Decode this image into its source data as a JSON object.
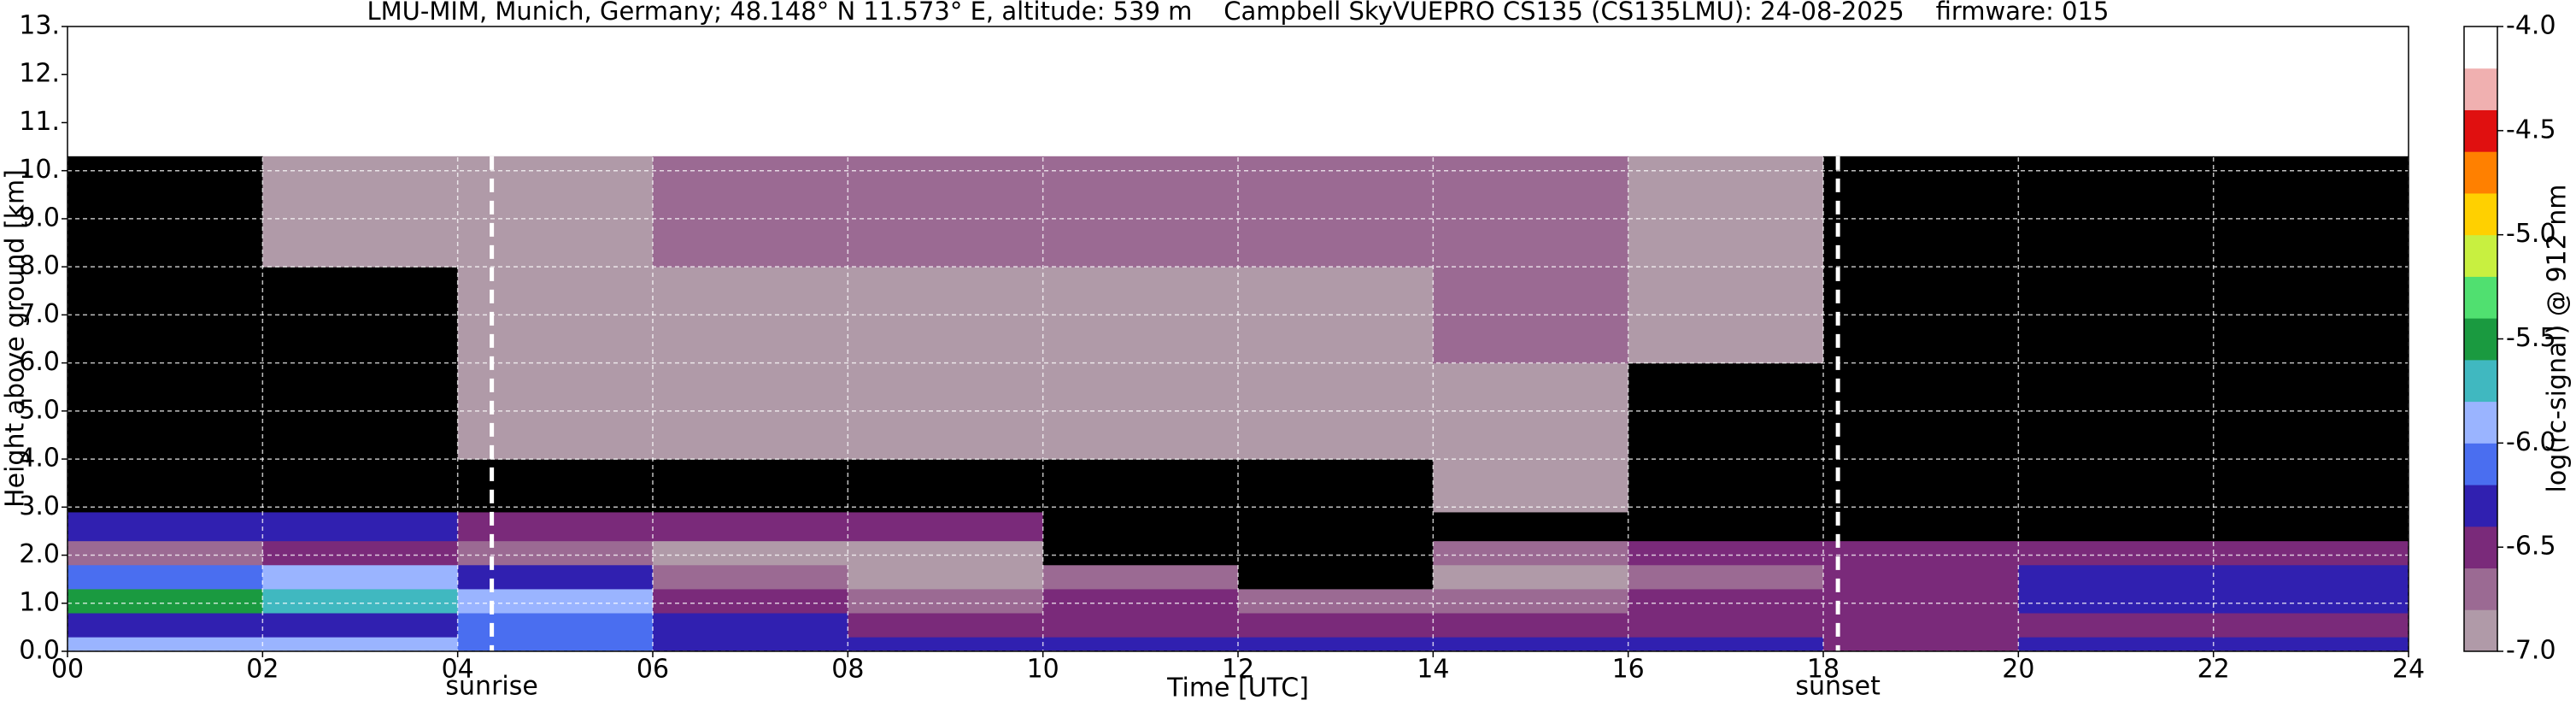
{
  "chart_data": {
    "type": "heatmap",
    "title": "LMU-MIM, Munich, Germany; 48.148° N 11.573° E, altitude: 539 m    Campbell SkyVUEPRO CS135 (CS135LMU): 24-08-2025    firmware: 015",
    "xlabel": "Time [UTC]",
    "ylabel": "Height above ground [km]",
    "colorbar_label": "log(rc-signal) @ 912 nm",
    "xlim": [
      0,
      24
    ],
    "ylim": [
      0,
      13
    ],
    "xticks": [
      {
        "value": 0,
        "label": "00"
      },
      {
        "value": 2,
        "label": "02"
      },
      {
        "value": 4,
        "label": "04"
      },
      {
        "value": 6,
        "label": "06"
      },
      {
        "value": 8,
        "label": "08"
      },
      {
        "value": 10,
        "label": "10"
      },
      {
        "value": 12,
        "label": "12"
      },
      {
        "value": 14,
        "label": "14"
      },
      {
        "value": 16,
        "label": "16"
      },
      {
        "value": 18,
        "label": "18"
      },
      {
        "value": 20,
        "label": "20"
      },
      {
        "value": 22,
        "label": "22"
      },
      {
        "value": 24,
        "label": "24"
      }
    ],
    "yticks": [
      {
        "value": 0,
        "label": "0.0"
      },
      {
        "value": 1,
        "label": "1.0"
      },
      {
        "value": 2,
        "label": "2.0"
      },
      {
        "value": 3,
        "label": "3.0"
      },
      {
        "value": 4,
        "label": "4.0"
      },
      {
        "value": 5,
        "label": "5.0"
      },
      {
        "value": 6,
        "label": "6.0"
      },
      {
        "value": 7,
        "label": "7.0"
      },
      {
        "value": 8,
        "label": "8.0"
      },
      {
        "value": 9,
        "label": "9.0"
      },
      {
        "value": 10,
        "label": "10."
      },
      {
        "value": 11,
        "label": "11."
      },
      {
        "value": 12,
        "label": "12."
      },
      {
        "value": 13,
        "label": "13."
      }
    ],
    "grid": true,
    "x_edges": [
      0,
      2,
      4,
      6,
      8,
      10,
      12,
      14,
      16,
      18,
      20,
      22,
      24
    ],
    "y_edges": [
      0,
      0.3,
      0.8,
      1.3,
      1.8,
      2.3,
      2.9,
      4,
      6,
      8,
      10.3
    ],
    "z": [
      [
        -6.0,
        -6.2,
        -5.6,
        -6.1,
        -6.7,
        -6.3,
        -7.4,
        -7.4,
        -7.3,
        -7.1
      ],
      [
        -6.0,
        -6.3,
        -5.7,
        -6.0,
        -6.6,
        -6.3,
        -7.4,
        -7.4,
        -7.3,
        -7.0
      ],
      [
        -6.1,
        -6.1,
        -6.0,
        -6.3,
        -6.7,
        -6.4,
        -7.1,
        -7.0,
        -6.9,
        -6.9
      ],
      [
        -6.2,
        -6.3,
        -6.6,
        -6.8,
        -7.0,
        -6.5,
        -7.1,
        -7.0,
        -6.9,
        -6.8
      ],
      [
        -6.2,
        -6.4,
        -6.7,
        -6.9,
        -7.0,
        -6.6,
        -7.1,
        -7.0,
        -6.9,
        -6.8
      ],
      [
        -6.2,
        -6.4,
        -6.5,
        -6.7,
        -7.1,
        -7.1,
        -7.1,
        -7.0,
        -6.9,
        -6.8
      ],
      [
        -6.2,
        -6.5,
        -6.8,
        -7.1,
        -7.1,
        -7.1,
        -7.1,
        -7.0,
        -6.9,
        -6.8
      ],
      [
        -6.2,
        -6.5,
        -6.7,
        -6.9,
        -6.8,
        -7.1,
        -7.0,
        -6.9,
        -6.8,
        -6.8
      ],
      [
        -6.2,
        -6.5,
        -6.6,
        -6.8,
        -6.5,
        -7.2,
        -7.2,
        -7.1,
        -7.0,
        -6.9
      ],
      [
        -6.4,
        -6.5,
        -6.5,
        -6.4,
        -6.5,
        -7.4,
        -7.4,
        -7.4,
        -7.3,
        -7.2
      ],
      [
        -6.3,
        -6.4,
        -6.3,
        -6.2,
        -6.6,
        -7.4,
        -7.4,
        -7.4,
        -7.3,
        -7.2
      ],
      [
        -6.3,
        -6.4,
        -6.3,
        -6.2,
        -6.6,
        -7.4,
        -7.4,
        -7.4,
        -7.3,
        -7.2
      ]
    ],
    "clim": [
      -7.0,
      -4.0
    ],
    "cticks": [
      {
        "value": -7.0,
        "label": "-7.0"
      },
      {
        "value": -6.5,
        "label": "-6.5"
      },
      {
        "value": -6.0,
        "label": "-6.0"
      },
      {
        "value": -5.5,
        "label": "-5.5"
      },
      {
        "value": -5.0,
        "label": "-5.0"
      },
      {
        "value": -4.5,
        "label": "-4.5"
      },
      {
        "value": -4.0,
        "label": "-4.0"
      }
    ],
    "colors": [
      "#b09aa8",
      "#9b6a93",
      "#7a2a7a",
      "#3020b0",
      "#4a6ef0",
      "#9ab4ff",
      "#40b8c0",
      "#1a9a40",
      "#50e070",
      "#c8f040",
      "#ffd000",
      "#ff8000",
      "#e01010",
      "#f0b0b0",
      "#ffffff"
    ],
    "under_color": "#000000",
    "annotations": [
      {
        "label": "sunrise",
        "x": 4.35
      },
      {
        "label": "sunset",
        "x": 18.15
      }
    ]
  }
}
